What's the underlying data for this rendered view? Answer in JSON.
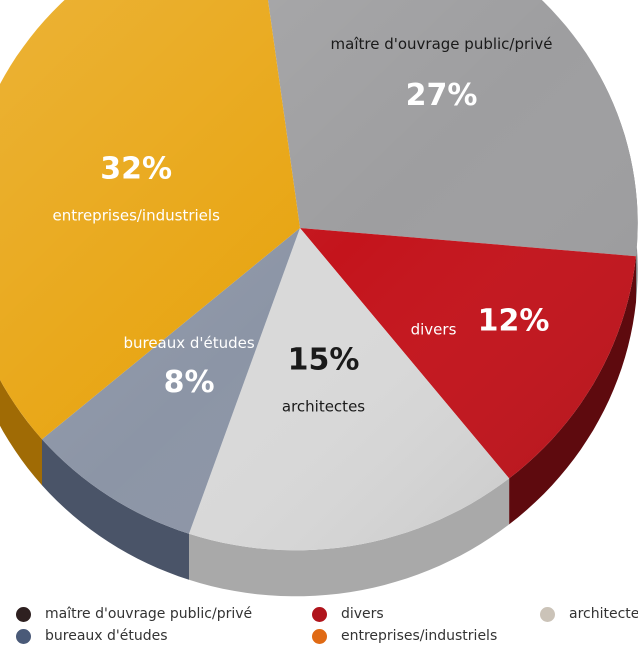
{
  "chart_data": {
    "type": "pie",
    "title": "",
    "slices": [
      {
        "key": "maitre",
        "label": "maître d'ouvrage public/privé",
        "value": 27,
        "value_label": "27%",
        "color": "#9e9ea0",
        "side_color": "#828284",
        "legend_color": "#2e2020",
        "legend_text": "maître d'ouvrage public/privé"
      },
      {
        "key": "divers",
        "label": "divers",
        "value": 12,
        "value_label": "12%",
        "color": "#c4141c",
        "side_color": "#5e0a0e",
        "legend_color": "#b0141c",
        "legend_text": "divers"
      },
      {
        "key": "architectes",
        "label": "architectes",
        "value": 15,
        "value_label": "15%",
        "color": "#d9d9d9",
        "side_color": "#a9a9a9",
        "legend_color": "#cbc3b8",
        "legend_text": "architectes"
      },
      {
        "key": "bureaux",
        "label": "bureaux d'études",
        "value": 8,
        "value_label": "8%",
        "color": "#8c95a6",
        "side_color": "#4a5468",
        "legend_color": "#4a5a78",
        "legend_text": "bureaux d'études"
      },
      {
        "key": "entreprises",
        "label": "entreprises/industriels",
        "value": 32,
        "value_label": "32%",
        "color": "#e8a512",
        "side_color": "#a06b05",
        "legend_color": "#e06a14",
        "legend_text": "entreprises/industriels"
      }
    ],
    "legend_position": "bottom",
    "three_d": true
  }
}
